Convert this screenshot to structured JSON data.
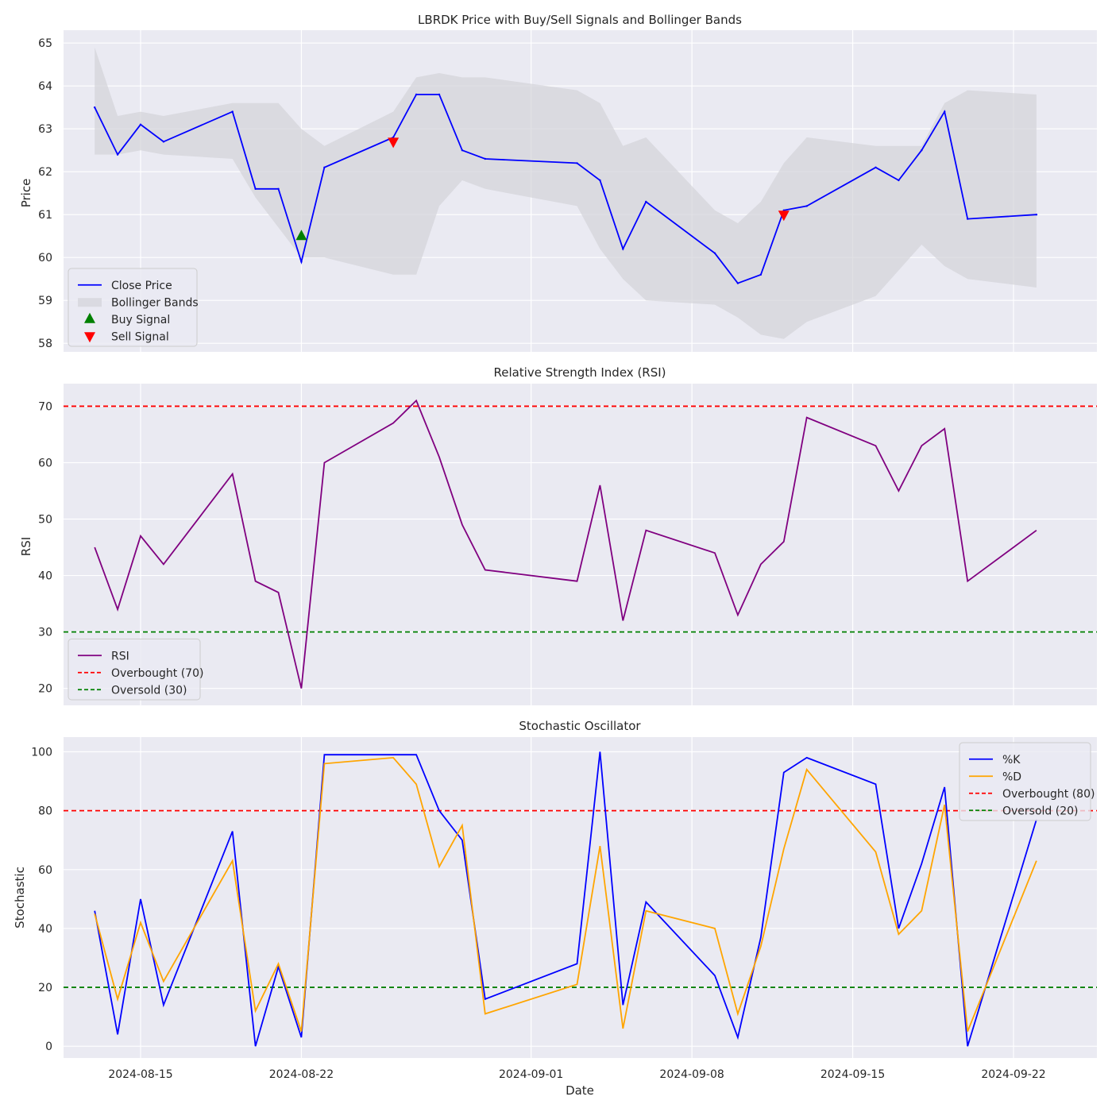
{
  "colors": {
    "axes_bg": "#eaeaf2",
    "grid": "#ffffff",
    "close": "#0000ff",
    "bands": "#d3d3d9",
    "buy": "#008000",
    "sell": "#ff0000",
    "rsi": "#800080",
    "overbought": "#ff0000",
    "oversold": "#008000",
    "k": "#0000ff",
    "d": "#ffa500"
  },
  "xlabel": "Date",
  "xticks": [
    "2024-08-15",
    "2024-08-22",
    "2024-09-01",
    "2024-09-08",
    "2024-09-15",
    "2024-09-22"
  ],
  "chart_data": [
    {
      "type": "line",
      "title": "LBRDK Price with Buy/Sell Signals and Bollinger Bands",
      "ylabel": "Price",
      "xlabel": "",
      "ylim": [
        57.8,
        65.3
      ],
      "yticks": [
        58,
        59,
        60,
        61,
        62,
        63,
        64,
        65
      ],
      "grid": true,
      "legend_position": "lower-left",
      "legend": [
        "Close Price",
        "Bollinger Bands",
        "Buy Signal",
        "Sell Signal"
      ],
      "x": [
        "2024-08-13",
        "2024-08-14",
        "2024-08-15",
        "2024-08-16",
        "2024-08-19",
        "2024-08-20",
        "2024-08-21",
        "2024-08-22",
        "2024-08-23",
        "2024-08-26",
        "2024-08-27",
        "2024-08-28",
        "2024-08-29",
        "2024-08-30",
        "2024-09-03",
        "2024-09-04",
        "2024-09-05",
        "2024-09-06",
        "2024-09-09",
        "2024-09-10",
        "2024-09-11",
        "2024-09-12",
        "2024-09-13",
        "2024-09-16",
        "2024-09-17",
        "2024-09-18",
        "2024-09-19",
        "2024-09-20",
        "2024-09-23"
      ],
      "series": [
        {
          "name": "Close Price",
          "values": [
            63.5,
            62.4,
            63.1,
            62.7,
            63.4,
            61.6,
            61.6,
            59.9,
            62.1,
            62.8,
            63.8,
            63.8,
            62.5,
            62.3,
            62.2,
            61.8,
            60.2,
            61.3,
            60.1,
            59.4,
            59.6,
            61.1,
            61.2,
            62.1,
            61.8,
            62.5,
            63.4,
            60.9,
            61.0
          ]
        },
        {
          "name": "Bollinger Upper",
          "values": [
            64.9,
            63.3,
            63.4,
            63.3,
            63.6,
            63.6,
            63.6,
            63.0,
            62.6,
            63.4,
            64.2,
            64.3,
            64.2,
            64.2,
            63.9,
            63.6,
            62.6,
            62.8,
            61.1,
            60.8,
            61.3,
            62.2,
            62.8,
            62.6,
            62.6,
            62.6,
            63.6,
            63.9,
            63.8
          ]
        },
        {
          "name": "Bollinger Lower",
          "values": [
            62.4,
            62.4,
            62.5,
            62.4,
            62.3,
            61.4,
            60.7,
            60.0,
            60.0,
            59.6,
            59.6,
            61.2,
            61.8,
            61.6,
            61.2,
            60.2,
            59.5,
            59.0,
            58.9,
            58.6,
            58.2,
            58.1,
            58.5,
            59.1,
            59.7,
            60.3,
            59.8,
            59.5,
            59.3
          ]
        }
      ],
      "signals": {
        "buy": [
          {
            "x": "2024-08-22",
            "y": 60.5
          }
        ],
        "sell": [
          {
            "x": "2024-08-26",
            "y": 62.7
          },
          {
            "x": "2024-09-12",
            "y": 61.0
          }
        ]
      }
    },
    {
      "type": "line",
      "title": "Relative Strength Index (RSI)",
      "ylabel": "RSI",
      "xlabel": "",
      "ylim": [
        17,
        74
      ],
      "yticks": [
        20,
        30,
        40,
        50,
        60,
        70
      ],
      "grid": true,
      "legend_position": "lower-left",
      "legend": [
        "RSI",
        "Overbought (70)",
        "Oversold (30)"
      ],
      "hlines": [
        {
          "name": "Overbought (70)",
          "y": 70
        },
        {
          "name": "Oversold (30)",
          "y": 30
        }
      ],
      "x": [
        "2024-08-13",
        "2024-08-14",
        "2024-08-15",
        "2024-08-16",
        "2024-08-19",
        "2024-08-20",
        "2024-08-21",
        "2024-08-22",
        "2024-08-23",
        "2024-08-26",
        "2024-08-27",
        "2024-08-28",
        "2024-08-29",
        "2024-08-30",
        "2024-09-03",
        "2024-09-04",
        "2024-09-05",
        "2024-09-06",
        "2024-09-09",
        "2024-09-10",
        "2024-09-11",
        "2024-09-12",
        "2024-09-13",
        "2024-09-16",
        "2024-09-17",
        "2024-09-18",
        "2024-09-19",
        "2024-09-20",
        "2024-09-23"
      ],
      "series": [
        {
          "name": "RSI",
          "values": [
            45,
            34,
            47,
            42,
            58,
            39,
            37,
            20,
            60,
            67,
            71,
            61,
            49,
            41,
            39,
            56,
            32,
            48,
            44,
            33,
            42,
            46,
            68,
            63,
            55,
            63,
            66,
            39,
            48
          ]
        }
      ]
    },
    {
      "type": "line",
      "title": "Stochastic Oscillator",
      "ylabel": "Stochastic",
      "xlabel": "Date",
      "ylim": [
        -4,
        105
      ],
      "yticks": [
        0,
        20,
        40,
        60,
        80,
        100
      ],
      "grid": true,
      "legend_position": "top-right",
      "legend": [
        "%K",
        "%D",
        "Overbought (80)",
        "Oversold (20)"
      ],
      "hlines": [
        {
          "name": "Overbought (80)",
          "y": 80
        },
        {
          "name": "Oversold (20)",
          "y": 20
        }
      ],
      "x": [
        "2024-08-13",
        "2024-08-14",
        "2024-08-15",
        "2024-08-16",
        "2024-08-19",
        "2024-08-20",
        "2024-08-21",
        "2024-08-22",
        "2024-08-23",
        "2024-08-26",
        "2024-08-27",
        "2024-08-28",
        "2024-08-29",
        "2024-08-30",
        "2024-09-03",
        "2024-09-04",
        "2024-09-05",
        "2024-09-06",
        "2024-09-09",
        "2024-09-10",
        "2024-09-11",
        "2024-09-12",
        "2024-09-13",
        "2024-09-16",
        "2024-09-17",
        "2024-09-18",
        "2024-09-19",
        "2024-09-20",
        "2024-09-23"
      ],
      "series": [
        {
          "name": "%K",
          "values": [
            46,
            4,
            50,
            14,
            73,
            0,
            27,
            3,
            99,
            99,
            99,
            80,
            70,
            16,
            28,
            100,
            14,
            49,
            24,
            3,
            37,
            93,
            98,
            89,
            40,
            62,
            88,
            0,
            77
          ]
        },
        {
          "name": "%D",
          "values": [
            45,
            16,
            42,
            22,
            63,
            12,
            28,
            5,
            96,
            98,
            89,
            61,
            75,
            11,
            21,
            68,
            6,
            46,
            40,
            11,
            34,
            67,
            94,
            66,
            38,
            46,
            82,
            5,
            63
          ]
        }
      ]
    }
  ]
}
